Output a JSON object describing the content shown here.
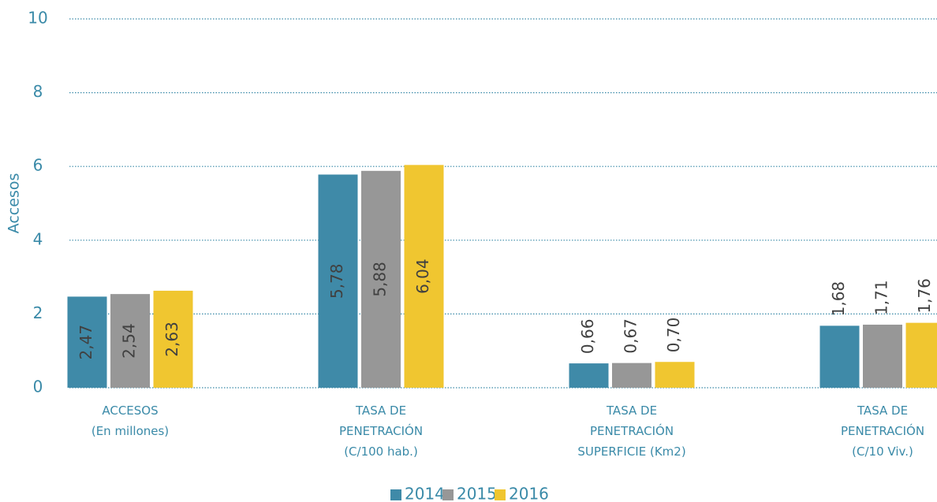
{
  "chart_data": {
    "type": "bar",
    "y_label": "Accesos",
    "categories": [
      "ACCESOS\n(En millones)",
      "TASA DE\nPENETRACIÓN\n(C/100 hab.)",
      "TASA DE\nPENETRACIÓN\nSUPERFICIE (Km2)",
      "TASA DE\nPENETRACIÓN\n(C/10 Viv.)"
    ],
    "series": [
      {
        "name": "2014",
        "color": "#3f8aa8",
        "values": [
          2.47,
          5.78,
          0.66,
          1.68
        ],
        "value_labels": [
          "2,47",
          "5,78",
          "0,66",
          "1,68"
        ]
      },
      {
        "name": "2015",
        "color": "#979797",
        "values": [
          2.54,
          5.88,
          0.67,
          1.71
        ],
        "value_labels": [
          "2,54",
          "5,88",
          "0,67",
          "1,71"
        ]
      },
      {
        "name": "2016",
        "color": "#f0c630",
        "values": [
          2.63,
          6.04,
          0.7,
          1.76
        ],
        "value_labels": [
          "2,63",
          "6,04",
          "0,70",
          "1,76"
        ]
      }
    ],
    "ylim": [
      0,
      10
    ],
    "yticks": [
      0,
      2,
      4,
      6,
      8,
      10
    ],
    "grid": true,
    "legend": "bottom"
  }
}
